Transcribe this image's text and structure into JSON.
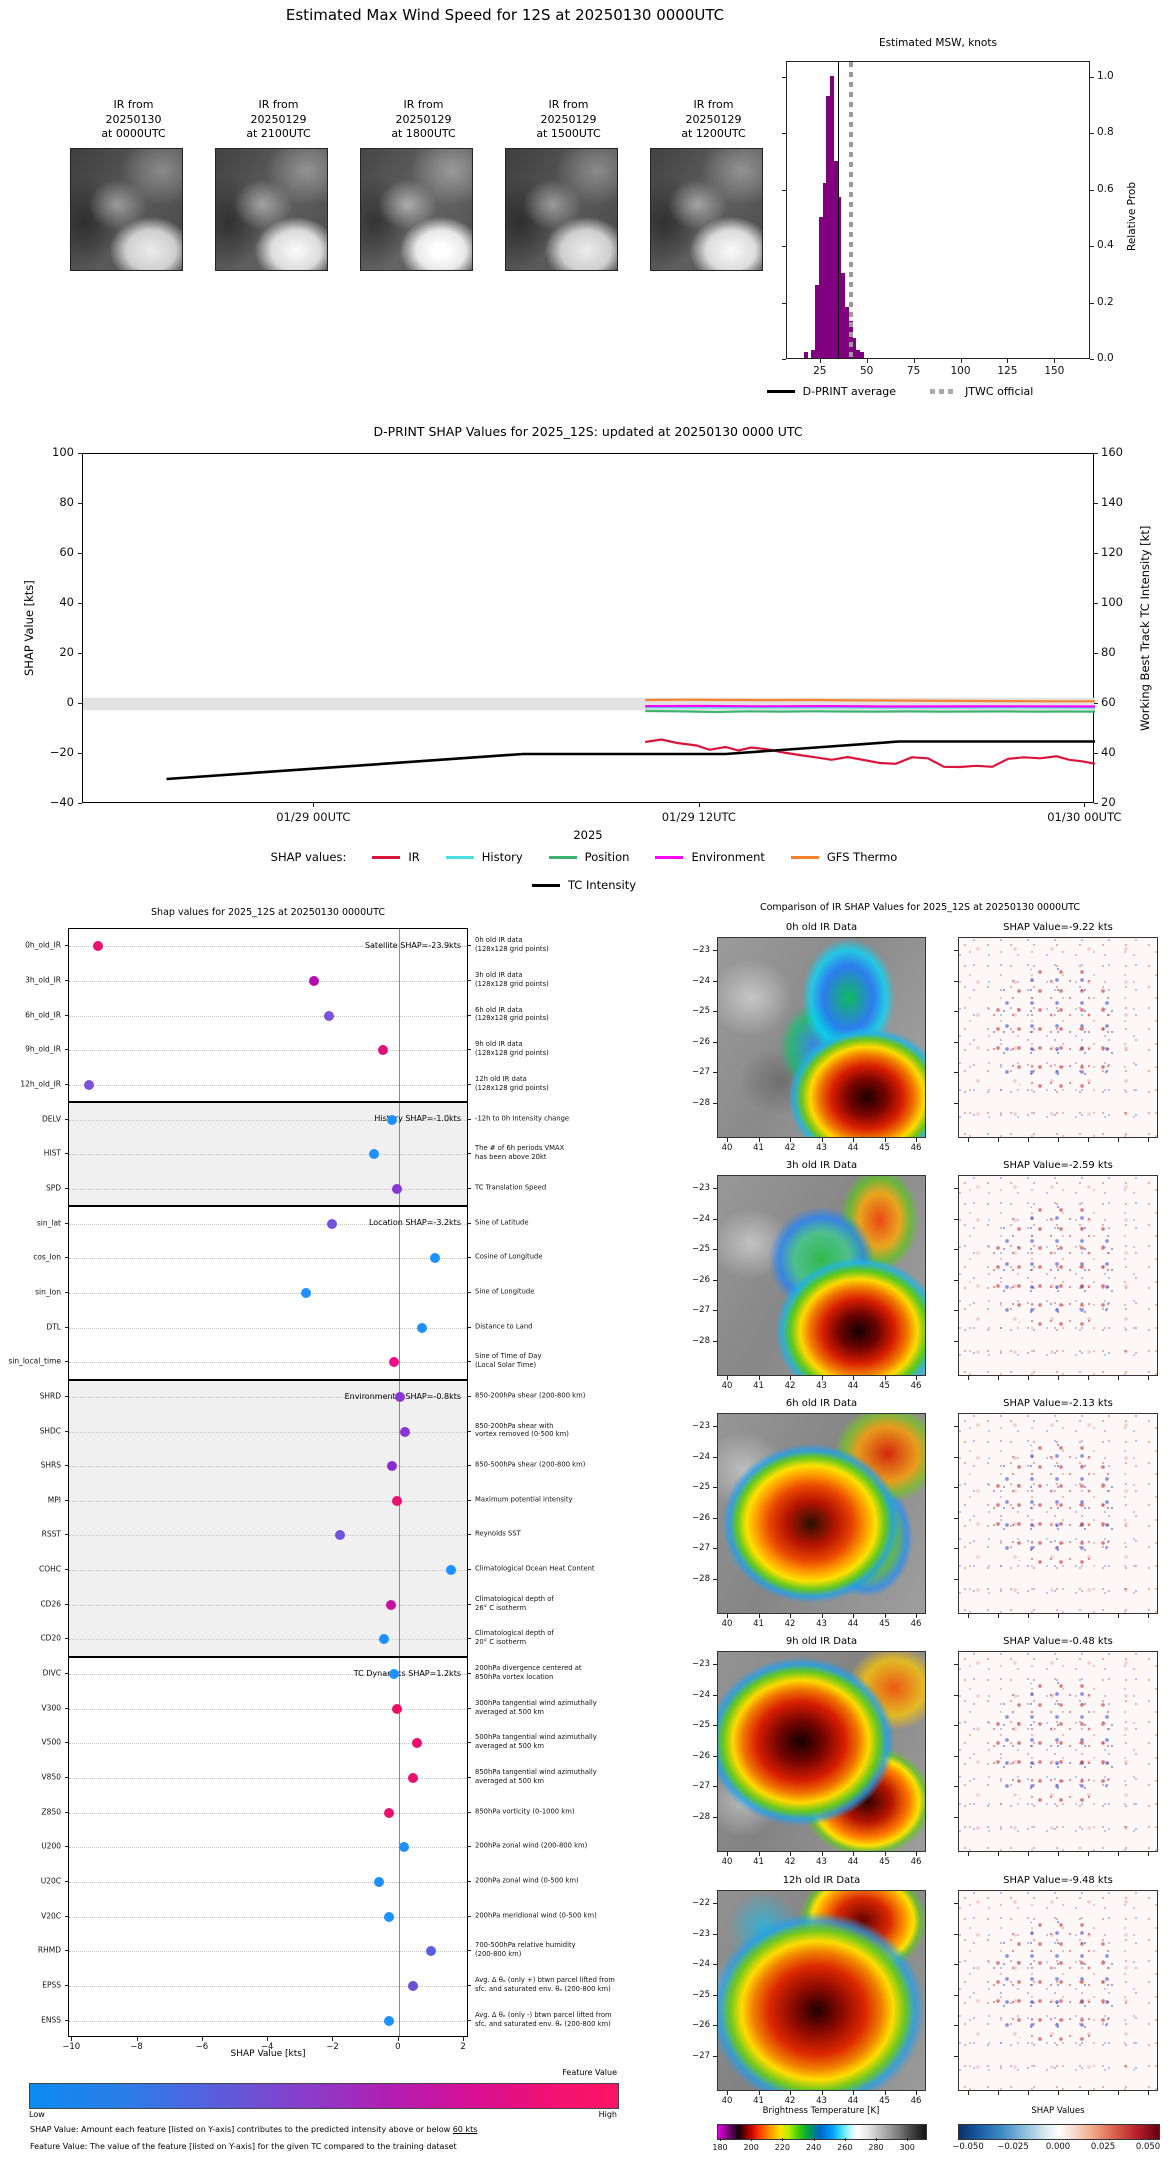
{
  "page_title": "Estimated Max Wind Speed for 12S at 20250130 0000UTC",
  "ir_thumbnails": [
    {
      "label": "IR from\n20250130\nat 0000UTC"
    },
    {
      "label": "IR from\n20250129\nat 2100UTC"
    },
    {
      "label": "IR from\n20250129\nat 1800UTC"
    },
    {
      "label": "IR from\n20250129\nat 1500UTC"
    },
    {
      "label": "IR from\n20250129\nat 1200UTC"
    }
  ],
  "chart_data": [
    {
      "id": "msw_histogram",
      "type": "bar",
      "title": "Estimated MSW, knots",
      "ylabel": "Relative Prob",
      "xlim": [
        7,
        169
      ],
      "ylim": [
        0,
        1.057
      ],
      "xticks": [
        25,
        50,
        75,
        100,
        125,
        150
      ],
      "yticks": [
        "0.0",
        "0.2",
        "0.4",
        "0.6",
        "0.8",
        "1.0"
      ],
      "bar_color": "#800080",
      "bin_width": 2,
      "bars": [
        [
          17,
          0.02
        ],
        [
          21,
          0.03
        ],
        [
          23,
          0.26
        ],
        [
          25,
          0.5
        ],
        [
          27,
          0.62
        ],
        [
          29,
          0.93
        ],
        [
          31,
          1.0
        ],
        [
          33,
          0.7
        ],
        [
          35,
          0.57
        ],
        [
          37,
          0.3
        ],
        [
          39,
          0.18
        ],
        [
          41,
          0.13
        ],
        [
          43,
          0.07
        ],
        [
          45,
          0.03
        ],
        [
          47,
          0.02
        ]
      ],
      "dprint_average_kt": 34,
      "jtwc_official_kt": 41,
      "legend": [
        {
          "label": "D-PRINT average",
          "style": "solid",
          "color": "#000000"
        },
        {
          "label": "JTWC official",
          "style": "dotted",
          "color": "#aaaaaa"
        }
      ]
    },
    {
      "id": "shap_timeseries",
      "type": "line",
      "title": "D-PRINT SHAP Values for 2025_12S: updated at 20250130 0000 UTC",
      "ylabel_left": "SHAP Value [kts]",
      "ylabel_right": "Working Best Track TC Intensity [kt]",
      "xlabel": "2025",
      "ylim_left": [
        -40,
        100
      ],
      "ylim_right": [
        20,
        160
      ],
      "yticks_left": [
        -40,
        -20,
        0,
        20,
        40,
        60,
        80,
        100
      ],
      "yticks_right": [
        20,
        40,
        60,
        80,
        100,
        120,
        140,
        160
      ],
      "xlim_hours": [
        -7.2,
        24.3
      ],
      "xticks": [
        {
          "hour": 0,
          "label": "01/29 00UTC"
        },
        {
          "hour": 12,
          "label": "01/29 12UTC"
        },
        {
          "hour": 24,
          "label": "01/30 00UTC"
        }
      ],
      "zero_band": [
        -2.5,
        2.5
      ],
      "legend_prefix": "SHAP values:",
      "series": [
        {
          "name": "IR",
          "color": "#DC143C",
          "axis": "left",
          "points": [
            [
              10.3,
              -15.2
            ],
            [
              10.8,
              -14.2
            ],
            [
              11.3,
              -15.6
            ],
            [
              11.9,
              -16.6
            ],
            [
              12.3,
              -18.3
            ],
            [
              12.8,
              -17.2
            ],
            [
              13.2,
              -18.6
            ],
            [
              13.6,
              -17.4
            ],
            [
              14.1,
              -18.1
            ],
            [
              14.6,
              -19.4
            ],
            [
              15.1,
              -20.4
            ],
            [
              15.6,
              -21.3
            ],
            [
              16.1,
              -22.3
            ],
            [
              16.6,
              -21.2
            ],
            [
              17.1,
              -22.4
            ],
            [
              17.6,
              -23.6
            ],
            [
              18.1,
              -23.9
            ],
            [
              18.6,
              -21.3
            ],
            [
              19.1,
              -21.7
            ],
            [
              19.6,
              -25.1
            ],
            [
              20.1,
              -25.2
            ],
            [
              20.6,
              -24.7
            ],
            [
              21.1,
              -25.1
            ],
            [
              21.6,
              -21.9
            ],
            [
              22.1,
              -21.3
            ],
            [
              22.6,
              -21.7
            ],
            [
              23.1,
              -20.9
            ],
            [
              23.5,
              -22.3
            ],
            [
              23.9,
              -22.9
            ],
            [
              24.3,
              -23.9
            ]
          ]
        },
        {
          "name": "History",
          "color": "#48E0E0",
          "axis": "left",
          "points": [
            [
              10.3,
              -1.3
            ],
            [
              12,
              -1.35
            ],
            [
              14,
              -1.4
            ],
            [
              16,
              -1.35
            ],
            [
              18,
              -1.45
            ],
            [
              20,
              -1.4
            ],
            [
              22,
              -1.35
            ],
            [
              24.3,
              -1.45
            ]
          ]
        },
        {
          "name": "Position",
          "color": "#3CB371",
          "axis": "left",
          "points": [
            [
              10.3,
              -2.8
            ],
            [
              11.5,
              -2.95
            ],
            [
              12.5,
              -3.2
            ],
            [
              13.5,
              -2.9
            ],
            [
              14.5,
              -3.05
            ],
            [
              15.5,
              -2.9
            ],
            [
              16.5,
              -3.0
            ],
            [
              17.5,
              -3.05
            ],
            [
              18.5,
              -2.95
            ],
            [
              19.5,
              -3.05
            ],
            [
              20.5,
              -3.0
            ],
            [
              21.5,
              -2.95
            ],
            [
              22.5,
              -3.05
            ],
            [
              23.4,
              -3.0
            ],
            [
              24.3,
              -3.05
            ]
          ]
        },
        {
          "name": "Environment",
          "color": "#FF00FF",
          "axis": "left",
          "points": [
            [
              10.3,
              -0.85
            ],
            [
              12,
              -0.8
            ],
            [
              14,
              -0.9
            ],
            [
              16,
              -0.85
            ],
            [
              18,
              -1.0
            ],
            [
              20,
              -0.95
            ],
            [
              22,
              -0.9
            ],
            [
              24.3,
              -1.0
            ]
          ]
        },
        {
          "name": "GFS Thermo",
          "color": "#F5822D",
          "axis": "left",
          "points": [
            [
              10.3,
              1.6
            ],
            [
              11.5,
              1.7
            ],
            [
              12.5,
              1.65
            ],
            [
              14,
              1.55
            ],
            [
              15.5,
              1.6
            ],
            [
              17,
              1.45
            ],
            [
              18.5,
              1.35
            ],
            [
              20,
              1.25
            ],
            [
              21.5,
              1.15
            ],
            [
              23,
              1.1
            ],
            [
              24.3,
              1.1
            ]
          ]
        },
        {
          "name": "TC Intensity",
          "color": "#000000",
          "axis": "right",
          "points": [
            [
              -4.6,
              30
            ],
            [
              6.5,
              40
            ],
            [
              12.8,
              40
            ],
            [
              18.2,
              45
            ],
            [
              24.3,
              45
            ]
          ]
        }
      ]
    },
    {
      "id": "shap_dotplot",
      "type": "scatter",
      "title": "Shap values for 2025_12S at 20250130 0000UTC",
      "xlabel": "SHAP Value [kts]",
      "xlim": [
        -10.1,
        2.15
      ],
      "xticks": [
        -10,
        -8,
        -6,
        -4,
        -2,
        0,
        2
      ],
      "sections": [
        {
          "header": "Satellite SHAP=-23.9kts",
          "shaded": false,
          "rows": [
            {
              "label": "0h_old_IR",
              "value": -9.22,
              "color": "#E8116E",
              "desc": "0h old IR data\n(128x128 grid points)"
            },
            {
              "label": "3h_old_IR",
              "value": -2.59,
              "color": "#B50DAD",
              "desc": "3h old IR data\n(128x128 grid points)"
            },
            {
              "label": "6h_old_IR",
              "value": -2.13,
              "color": "#7E52D6",
              "desc": "6h old IR data\n(128x128 grid points)"
            },
            {
              "label": "9h_old_IR",
              "value": -0.48,
              "color": "#E01279",
              "desc": "9h old IR data\n(128x128 grid points)"
            },
            {
              "label": "12h_old_IR",
              "value": -9.48,
              "color": "#7A55DC",
              "desc": "12h old IR data\n(128x128 grid points)"
            }
          ]
        },
        {
          "header": "History SHAP=-1.0kts",
          "shaded": true,
          "rows": [
            {
              "label": "DELV",
              "value": -0.2,
              "color": "#1E90FF",
              "desc": "-12h to 0h Intensity change"
            },
            {
              "label": "HIST",
              "value": -0.75,
              "color": "#1E90FF",
              "desc": "The # of 6h periods VMAX\nhas been above 20kt"
            },
            {
              "label": "SPD",
              "value": -0.05,
              "color": "#8A35D6",
              "desc": "TC Translation Speed"
            }
          ]
        },
        {
          "header": "Location SHAP=-3.2kts",
          "shaded": false,
          "rows": [
            {
              "label": "sin_lat",
              "value": -2.05,
              "color": "#7253DC",
              "desc": "Sine of Latitude"
            },
            {
              "label": "cos_lon",
              "value": 1.1,
              "color": "#1E90FF",
              "desc": "Cosine of Longitude"
            },
            {
              "label": "sin_lon",
              "value": -2.85,
              "color": "#1E90FF",
              "desc": "Sine of Longitude"
            },
            {
              "label": "DTL",
              "value": 0.7,
              "color": "#1E90FF",
              "desc": "Distance to Land"
            },
            {
              "label": "sin_local_time",
              "value": -0.15,
              "color": "#F20D8C",
              "desc": "Sine of Time of Day\n(Local Solar Time)"
            }
          ]
        },
        {
          "header": "Environmental SHAP=-0.8kts",
          "shaded": true,
          "rows": [
            {
              "label": "SHRD",
              "value": 0.05,
              "color": "#8A35D6",
              "desc": "850-200hPa shear (200-800 km)"
            },
            {
              "label": "SHDC",
              "value": 0.2,
              "color": "#8A35D6",
              "desc": "850-200hPa shear with\nvortex removed (0-500 km)"
            },
            {
              "label": "SHRS",
              "value": -0.2,
              "color": "#8A2BD0",
              "desc": "850-500hPa shear (200-800 km)"
            },
            {
              "label": "MPI",
              "value": -0.05,
              "color": "#E8116E",
              "desc": "Maximum potential intensity"
            },
            {
              "label": "RSST",
              "value": -1.8,
              "color": "#7253DC",
              "desc": "Reynolds SST"
            },
            {
              "label": "COHC",
              "value": 1.6,
              "color": "#1E90FF",
              "desc": "Climatological Ocean Heat Content"
            },
            {
              "label": "CD26",
              "value": -0.25,
              "color": "#C50F9F",
              "desc": "Climatological depth of\n26° C isotherm"
            },
            {
              "label": "CD20",
              "value": -0.45,
              "color": "#1E90FF",
              "desc": "Climatological depth of\n20° C isotherm"
            }
          ]
        },
        {
          "header": "TC Dynamics SHAP=1.2kts",
          "shaded": false,
          "rows": [
            {
              "label": "DIVC",
              "value": -0.15,
              "color": "#1E90FF",
              "desc": "200hPa divergence centered at\n850hPa vortex location"
            },
            {
              "label": "V300",
              "value": -0.05,
              "color": "#EE0E64",
              "desc": "300hPa tangential wind azimuthally\naveraged at 500 km"
            },
            {
              "label": "V500",
              "value": 0.55,
              "color": "#E8116E",
              "desc": "500hPa tangential wind azimuthally\naveraged at 500 km"
            },
            {
              "label": "V850",
              "value": 0.45,
              "color": "#E8116E",
              "desc": "850hPa tangential wind azimuthally\naveraged at 500 km"
            },
            {
              "label": "Z850",
              "value": -0.3,
              "color": "#E8116E",
              "desc": "850hPa vorticity (0-1000 km)"
            },
            {
              "label": "U200",
              "value": 0.15,
              "color": "#1E90FF",
              "desc": "200hPa zonal wind (200-800 km)"
            },
            {
              "label": "U20C",
              "value": -0.6,
              "color": "#1E90FF",
              "desc": "200hPa zonal wind (0-500 km)"
            },
            {
              "label": "V20C",
              "value": -0.3,
              "color": "#1E90FF",
              "desc": "200hPa meridional wind (0-500 km)"
            },
            {
              "label": "RHMD",
              "value": 1.0,
              "color": "#5A5FE0",
              "desc": "700-500hPa relative humidity\n(200-800 km)"
            },
            {
              "label": "EPSS",
              "value": 0.45,
              "color": "#6A4FD8",
              "desc": "Avg. Δ θₑ (only +) btwn parcel lifted from\nsfc. and saturated env. θₑ (200-800 km)"
            },
            {
              "label": "ENSS",
              "value": -0.3,
              "color": "#1E90FF",
              "desc": "Avg. Δ θₑ (only -) btwn parcel lifted from\nsfc. and saturated env. θₑ (200-800 km)"
            }
          ]
        }
      ],
      "colorbar": {
        "label": "Feature Value",
        "low": "Low",
        "high": "High"
      },
      "footnotes": [
        {
          "text": "SHAP Value: Amount each feature [listed on Y-axis] contributes to the predicted intensity above or below ",
          "underline": "60 kts"
        },
        {
          "text": "Feature Value: The value of the feature [listed on Y-axis] for the given TC compared to the training dataset",
          "underline": ""
        }
      ]
    },
    {
      "id": "ir_comparison",
      "type": "heatmap",
      "title": "Comparison of IR SHAP Values for 2025_12S at 20250130 0000UTC",
      "rows": [
        {
          "ir_title": "0h old IR Data",
          "shap_title": "SHAP Value=-9.22 kts",
          "shap_value_kts": -9.22,
          "yticks": [
            -23,
            -24,
            -25,
            -26,
            -27,
            -28
          ],
          "xticks": [
            40,
            41,
            42,
            43,
            44,
            45,
            46
          ]
        },
        {
          "ir_title": "3h old IR Data",
          "shap_title": "SHAP Value=-2.59 kts",
          "shap_value_kts": -2.59,
          "yticks": [
            -23,
            -24,
            -25,
            -26,
            -27,
            -28
          ],
          "xticks": [
            40,
            41,
            42,
            43,
            44,
            45,
            46
          ]
        },
        {
          "ir_title": "6h old IR Data",
          "shap_title": "SHAP Value=-2.13 kts",
          "shap_value_kts": -2.13,
          "yticks": [
            -23,
            -24,
            -25,
            -26,
            -27,
            -28
          ],
          "xticks": [
            40,
            41,
            42,
            43,
            44,
            45,
            46
          ]
        },
        {
          "ir_title": "9h old IR Data",
          "shap_title": "SHAP Value=-0.48 kts",
          "shap_value_kts": -0.48,
          "yticks": [
            -23,
            -24,
            -25,
            -26,
            -27,
            -28
          ],
          "xticks": [
            40,
            41,
            42,
            43,
            44,
            45,
            46
          ]
        },
        {
          "ir_title": "12h old IR Data",
          "shap_title": "SHAP Value=-9.48 kts",
          "shap_value_kts": -9.48,
          "yticks": [
            -22,
            -23,
            -24,
            -25,
            -26,
            -27
          ],
          "xticks": [
            40,
            41,
            42,
            43,
            44,
            45,
            46
          ]
        }
      ],
      "bt_colorbar": {
        "title": "Brightness Temperature [K]",
        "ticks": [
          180,
          200,
          220,
          240,
          260,
          280,
          300
        ]
      },
      "shap_colorbar": {
        "title": "SHAP Values",
        "ticks": [
          "−0.050",
          "−0.025",
          "0.000",
          "0.025",
          "0.050"
        ]
      }
    }
  ]
}
